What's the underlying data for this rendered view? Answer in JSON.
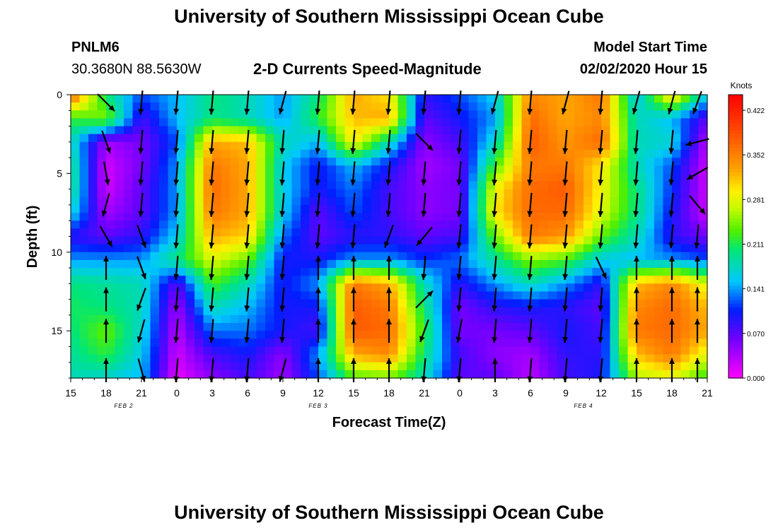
{
  "header": {
    "title_top": "University of Southern Mississippi Ocean Cube",
    "station_id": "PNLM6",
    "coords": "30.3680N 88.5630W",
    "subtitle": "2-D Currents Speed-Magnitude",
    "model_start_label": "Model Start Time",
    "model_start_value": "02/02/2020 Hour 15",
    "title_bottom": "University of Southern Mississippi Ocean Cube"
  },
  "chart_data": {
    "type": "heatmap",
    "title": "2-D Currents Speed-Magnitude",
    "xlabel": "Forecast Time(Z)",
    "ylabel": "Depth (ft)",
    "x_tick_labels": [
      "15",
      "18",
      "21",
      "0",
      "3",
      "6",
      "9",
      "12",
      "15",
      "18",
      "21",
      "0",
      "3",
      "6",
      "9",
      "12",
      "15",
      "18",
      "21"
    ],
    "x_hours_from_start": [
      0,
      3,
      6,
      9,
      12,
      15,
      18,
      21,
      24,
      27,
      30,
      33,
      36,
      39,
      42,
      45,
      48,
      51,
      54
    ],
    "date_labels": [
      {
        "text": "FEB 2",
        "hour": 4.5
      },
      {
        "text": "FEB 3",
        "hour": 21
      },
      {
        "text": "FEB 4",
        "hour": 43.5
      }
    ],
    "y_ticks": [
      0,
      5,
      10,
      15
    ],
    "ylim": [
      0,
      18
    ],
    "xlim": [
      0,
      54
    ],
    "colorbar": {
      "unit": "Knots",
      "ticks": [
        "0.422",
        "0.352",
        "0.281",
        "0.211",
        "0.141",
        "0.070",
        "0.000"
      ],
      "range": [
        0.0,
        0.45
      ]
    },
    "depths_ft": [
      0,
      1.5,
      3,
      4.5,
      6,
      7.5,
      9,
      10.5,
      12,
      13.5,
      15,
      16.5,
      18
    ],
    "times_hr": [
      0,
      3,
      6,
      9,
      12,
      15,
      18,
      21,
      24,
      27,
      30,
      33,
      36,
      39,
      42,
      45,
      48,
      51,
      54
    ],
    "speed_knots": [
      [
        0.38,
        0.2,
        0.12,
        0.15,
        0.2,
        0.18,
        0.14,
        0.2,
        0.33,
        0.3,
        0.09,
        0.12,
        0.16,
        0.35,
        0.33,
        0.36,
        0.15,
        0.32,
        0.16
      ],
      [
        0.22,
        0.25,
        0.08,
        0.15,
        0.2,
        0.18,
        0.14,
        0.22,
        0.32,
        0.33,
        0.07,
        0.1,
        0.14,
        0.37,
        0.33,
        0.35,
        0.18,
        0.15,
        0.07
      ],
      [
        0.18,
        0.04,
        0.06,
        0.12,
        0.33,
        0.32,
        0.18,
        0.15,
        0.3,
        0.18,
        0.05,
        0.08,
        0.17,
        0.38,
        0.34,
        0.37,
        0.18,
        0.17,
        0.03
      ],
      [
        0.2,
        0.02,
        0.06,
        0.14,
        0.36,
        0.33,
        0.16,
        0.1,
        0.15,
        0.1,
        0.04,
        0.06,
        0.23,
        0.36,
        0.36,
        0.3,
        0.18,
        0.12,
        0.02
      ],
      [
        0.2,
        0.02,
        0.07,
        0.14,
        0.37,
        0.33,
        0.16,
        0.1,
        0.13,
        0.08,
        0.05,
        0.06,
        0.29,
        0.37,
        0.38,
        0.29,
        0.2,
        0.11,
        0.02
      ],
      [
        0.17,
        0.04,
        0.07,
        0.14,
        0.36,
        0.33,
        0.16,
        0.07,
        0.12,
        0.08,
        0.05,
        0.06,
        0.3,
        0.37,
        0.37,
        0.28,
        0.2,
        0.1,
        0.02
      ],
      [
        0.09,
        0.07,
        0.09,
        0.16,
        0.33,
        0.31,
        0.13,
        0.07,
        0.09,
        0.09,
        0.07,
        0.08,
        0.24,
        0.36,
        0.34,
        0.24,
        0.18,
        0.09,
        0.06
      ],
      [
        0.14,
        0.14,
        0.14,
        0.2,
        0.28,
        0.24,
        0.1,
        0.1,
        0.14,
        0.14,
        0.11,
        0.13,
        0.19,
        0.25,
        0.23,
        0.16,
        0.15,
        0.14,
        0.12
      ],
      [
        0.2,
        0.19,
        0.18,
        0.07,
        0.23,
        0.18,
        0.1,
        0.14,
        0.36,
        0.33,
        0.18,
        0.09,
        0.14,
        0.18,
        0.14,
        0.09,
        0.32,
        0.35,
        0.28
      ],
      [
        0.21,
        0.2,
        0.18,
        0.04,
        0.18,
        0.15,
        0.1,
        0.1,
        0.38,
        0.36,
        0.2,
        0.06,
        0.09,
        0.1,
        0.09,
        0.07,
        0.35,
        0.37,
        0.32
      ],
      [
        0.2,
        0.24,
        0.17,
        0.03,
        0.13,
        0.13,
        0.1,
        0.08,
        0.38,
        0.37,
        0.22,
        0.06,
        0.06,
        0.07,
        0.1,
        0.08,
        0.36,
        0.37,
        0.33
      ],
      [
        0.19,
        0.22,
        0.16,
        0.02,
        0.08,
        0.1,
        0.05,
        0.14,
        0.33,
        0.35,
        0.2,
        0.08,
        0.05,
        0.04,
        0.09,
        0.09,
        0.32,
        0.36,
        0.28
      ],
      [
        0.18,
        0.17,
        0.15,
        0.01,
        0.05,
        0.08,
        0.04,
        0.12,
        0.23,
        0.24,
        0.18,
        0.07,
        0.07,
        0.03,
        0.08,
        0.1,
        0.26,
        0.28,
        0.22
      ]
    ],
    "vectors": {
      "note": "arrow direction (compass degrees, direction toward) and relative length at selected grid points",
      "depths_ft": [
        0.5,
        3,
        5,
        7,
        9,
        11,
        13,
        15,
        17.5
      ],
      "times_hr": [
        3,
        6,
        9,
        12,
        15,
        18,
        21,
        24,
        27,
        30,
        33,
        36,
        39,
        42,
        45,
        48,
        51,
        54
      ],
      "dir_deg": [
        [
          135,
          185,
          185,
          185,
          185,
          195,
          185,
          185,
          185,
          185,
          185,
          195,
          185,
          195,
          185,
          195,
          195,
          200
        ],
        [
          160,
          185,
          185,
          185,
          185,
          185,
          185,
          185,
          185,
          135,
          185,
          185,
          185,
          185,
          185,
          185,
          185,
          255
        ],
        [
          170,
          185,
          185,
          185,
          185,
          185,
          185,
          185,
          185,
          185,
          185,
          185,
          185,
          185,
          185,
          185,
          185,
          240
        ],
        [
          195,
          185,
          185,
          185,
          185,
          185,
          185,
          185,
          185,
          185,
          185,
          185,
          185,
          185,
          185,
          185,
          185,
          140
        ],
        [
          150,
          160,
          185,
          185,
          185,
          185,
          185,
          185,
          200,
          220,
          185,
          185,
          185,
          185,
          185,
          185,
          185,
          185
        ],
        [
          0,
          160,
          185,
          185,
          185,
          185,
          0,
          0,
          0,
          185,
          185,
          185,
          185,
          185,
          155,
          0,
          0,
          0
        ],
        [
          0,
          200,
          185,
          185,
          185,
          185,
          0,
          0,
          0,
          45,
          185,
          185,
          185,
          185,
          185,
          0,
          0,
          0
        ],
        [
          0,
          195,
          185,
          185,
          185,
          185,
          0,
          0,
          0,
          200,
          190,
          185,
          185,
          185,
          185,
          0,
          0,
          0
        ],
        [
          0,
          165,
          185,
          185,
          185,
          195,
          0,
          0,
          0,
          185,
          185,
          0,
          185,
          185,
          185,
          0,
          0,
          0
        ]
      ]
    }
  }
}
